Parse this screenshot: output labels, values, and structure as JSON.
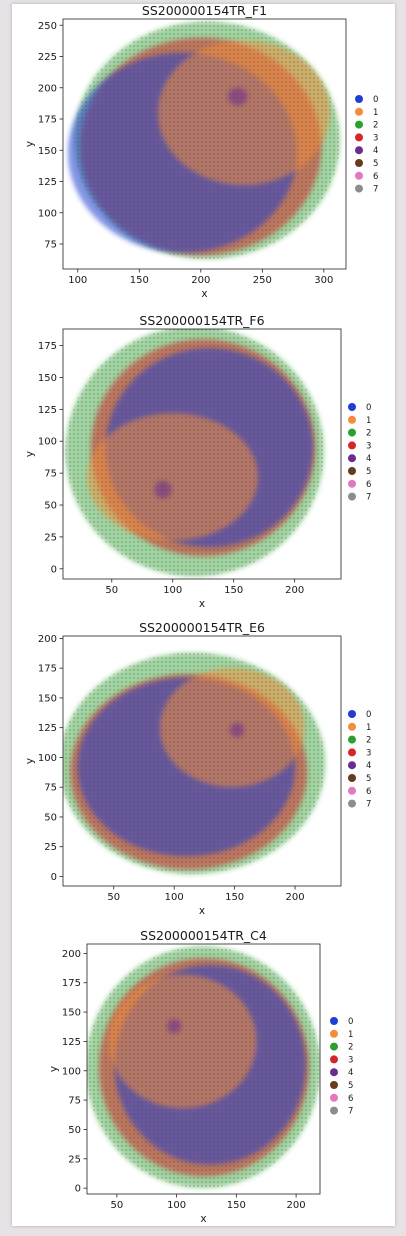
{
  "legend": [
    {
      "label": "0",
      "color": "#1f3fd1"
    },
    {
      "label": "1",
      "color": "#f28e3b"
    },
    {
      "label": "2",
      "color": "#2ca02c"
    },
    {
      "label": "3",
      "color": "#d62728"
    },
    {
      "label": "4",
      "color": "#6a2c91"
    },
    {
      "label": "5",
      "color": "#6b3a1e"
    },
    {
      "label": "6",
      "color": "#e377c2"
    },
    {
      "label": "7",
      "color": "#8c8c8c"
    }
  ],
  "chart_data": [
    {
      "type": "scatter",
      "title": "SS200000154TR_F1",
      "xlabel": "x",
      "ylabel": "y",
      "xlim": [
        88,
        318
      ],
      "ylim": [
        55,
        255
      ],
      "xticks": [
        100,
        150,
        200,
        250,
        300
      ],
      "yticks": [
        75,
        100,
        125,
        150,
        175,
        200,
        225,
        250
      ],
      "grid": false,
      "legend_position": "right",
      "blobs": [
        {
          "cluster": "2",
          "cx": 205,
          "cy": 158,
          "rx": 108,
          "ry": 95
        },
        {
          "cluster": "3",
          "cx": 200,
          "cy": 153,
          "rx": 98,
          "ry": 87
        },
        {
          "cluster": "0",
          "cx": 185,
          "cy": 148,
          "rx": 93,
          "ry": 80
        },
        {
          "cluster": "1",
          "cx": 235,
          "cy": 180,
          "rx": 70,
          "ry": 58
        },
        {
          "cluster": "4",
          "cx": 230,
          "cy": 193,
          "rx": 8,
          "ry": 7
        }
      ]
    },
    {
      "type": "scatter",
      "title": "SS200000154TR_F6",
      "xlabel": "x",
      "ylabel": "y",
      "xlim": [
        10,
        238
      ],
      "ylim": [
        -8,
        188
      ],
      "xticks": [
        50,
        100,
        150,
        200
      ],
      "yticks": [
        0,
        25,
        50,
        75,
        100,
        125,
        150,
        175
      ],
      "grid": false,
      "legend_position": "right",
      "blobs": [
        {
          "cluster": "2",
          "cx": 118,
          "cy": 92,
          "rx": 106,
          "ry": 98
        },
        {
          "cluster": "3",
          "cx": 125,
          "cy": 95,
          "rx": 92,
          "ry": 85
        },
        {
          "cluster": "0",
          "cx": 130,
          "cy": 95,
          "rx": 85,
          "ry": 78
        },
        {
          "cluster": "1",
          "cx": 100,
          "cy": 72,
          "rx": 70,
          "ry": 50
        },
        {
          "cluster": "4",
          "cx": 92,
          "cy": 62,
          "rx": 7,
          "ry": 7
        }
      ]
    },
    {
      "type": "scatter",
      "title": "SS200000154TR_E6",
      "xlabel": "x",
      "ylabel": "y",
      "xlim": [
        8,
        238
      ],
      "ylim": [
        -8,
        202
      ],
      "xticks": [
        50,
        100,
        150,
        200
      ],
      "yticks": [
        0,
        25,
        50,
        75,
        100,
        125,
        150,
        175,
        200
      ],
      "grid": false,
      "legend_position": "right",
      "blobs": [
        {
          "cluster": "2",
          "cx": 115,
          "cy": 95,
          "rx": 110,
          "ry": 93
        },
        {
          "cluster": "3",
          "cx": 112,
          "cy": 88,
          "rx": 98,
          "ry": 82
        },
        {
          "cluster": "0",
          "cx": 110,
          "cy": 92,
          "rx": 90,
          "ry": 75
        },
        {
          "cluster": "1",
          "cx": 148,
          "cy": 125,
          "rx": 60,
          "ry": 50
        },
        {
          "cluster": "4",
          "cx": 152,
          "cy": 123,
          "rx": 6,
          "ry": 6
        }
      ]
    },
    {
      "type": "scatter",
      "title": "SS200000154TR_C4",
      "xlabel": "x",
      "ylabel": "y",
      "xlim": [
        25,
        220
      ],
      "ylim": [
        -5,
        208
      ],
      "xticks": [
        50,
        100,
        150,
        200
      ],
      "yticks": [
        0,
        25,
        50,
        75,
        100,
        125,
        150,
        175,
        200
      ],
      "grid": false,
      "legend_position": "right",
      "blobs": [
        {
          "cluster": "2",
          "cx": 122,
          "cy": 103,
          "rx": 98,
          "ry": 103
        },
        {
          "cluster": "3",
          "cx": 123,
          "cy": 103,
          "rx": 88,
          "ry": 93
        },
        {
          "cluster": "0",
          "cx": 128,
          "cy": 105,
          "rx": 80,
          "ry": 85
        },
        {
          "cluster": "1",
          "cx": 105,
          "cy": 125,
          "rx": 62,
          "ry": 57
        },
        {
          "cluster": "4",
          "cx": 98,
          "cy": 138,
          "rx": 6,
          "ry": 6
        }
      ]
    }
  ]
}
